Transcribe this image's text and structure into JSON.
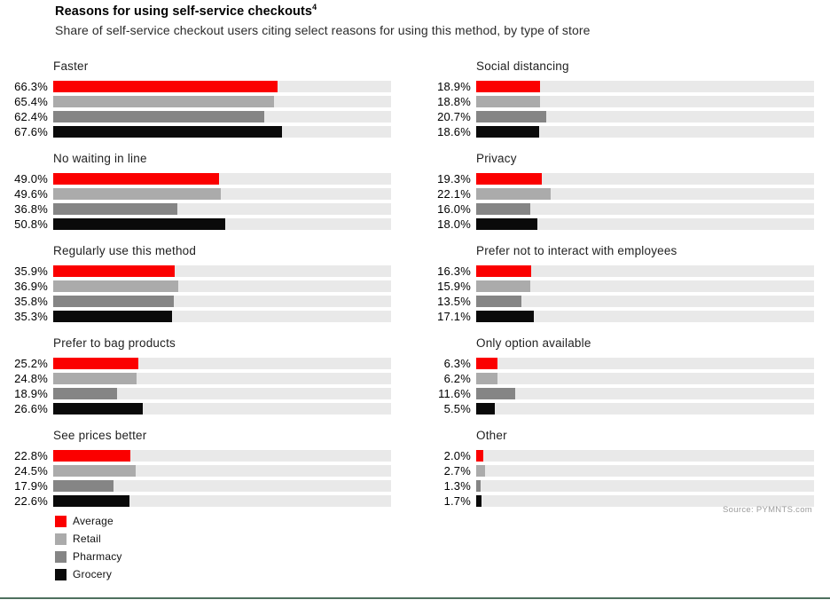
{
  "header": {
    "title": "Reasons for using self-service checkouts",
    "title_superscript": "4",
    "subtitle": "Share of self-service checkout users citing select reasons for using this method, by type of store"
  },
  "colors": {
    "average": "#fb0000",
    "retail": "#ababab",
    "pharmacy": "#858585",
    "grocery": "#0a0a0a",
    "track": "#e9e9e9",
    "bottom_rule": "#4e705e",
    "source_text": "#9b9b9b"
  },
  "legend": [
    {
      "key": "average",
      "label": "Average"
    },
    {
      "key": "retail",
      "label": "Retail"
    },
    {
      "key": "pharmacy",
      "label": "Pharmacy"
    },
    {
      "key": "grocery",
      "label": "Grocery"
    }
  ],
  "source": "Source: PYMNTS.com",
  "chart_data": {
    "type": "bar",
    "orientation": "horizontal",
    "unit": "%",
    "xlim": [
      0,
      100
    ],
    "grid": false,
    "legend_position": "bottom-left",
    "series_names": [
      "Average",
      "Retail",
      "Pharmacy",
      "Grocery"
    ],
    "groups": [
      {
        "title": "Faster",
        "column": "left",
        "values": [
          66.3,
          65.4,
          62.4,
          67.6
        ]
      },
      {
        "title": "Social distancing",
        "column": "right",
        "values": [
          18.9,
          18.8,
          20.7,
          18.6
        ]
      },
      {
        "title": "No waiting in line",
        "column": "left",
        "values": [
          49.0,
          49.6,
          36.8,
          50.8
        ]
      },
      {
        "title": "Privacy",
        "column": "right",
        "values": [
          19.3,
          22.1,
          16.0,
          18.0
        ]
      },
      {
        "title": "Regularly use this method",
        "column": "left",
        "values": [
          35.9,
          36.9,
          35.8,
          35.3
        ]
      },
      {
        "title": "Prefer not to interact with employees",
        "column": "right",
        "values": [
          16.3,
          15.9,
          13.5,
          17.1
        ]
      },
      {
        "title": "Prefer to bag products",
        "column": "left",
        "values": [
          25.2,
          24.8,
          18.9,
          26.6
        ]
      },
      {
        "title": "Only option available",
        "column": "right",
        "values": [
          6.3,
          6.2,
          11.6,
          5.5
        ]
      },
      {
        "title": "See prices better",
        "column": "left",
        "values": [
          22.8,
          24.5,
          17.9,
          22.6
        ]
      },
      {
        "title": "Other",
        "column": "right",
        "values": [
          2.0,
          2.7,
          1.3,
          1.7
        ]
      }
    ]
  }
}
